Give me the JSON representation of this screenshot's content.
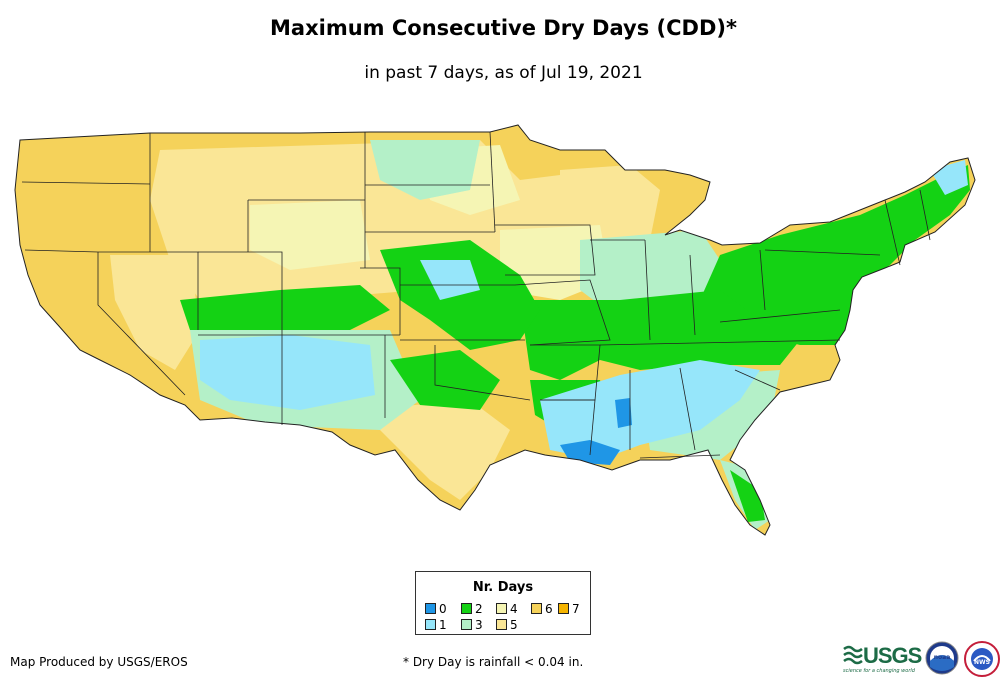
{
  "header": {
    "title": "Maximum Consecutive Dry Days (CDD)*",
    "subtitle": "in past 7 days, as of Jul 19, 2021"
  },
  "legend": {
    "title": "Nr. Days",
    "items": [
      {
        "label": "0",
        "value": 0,
        "color": "#1f96e6"
      },
      {
        "label": "1",
        "value": 1,
        "color": "#96e6fa"
      },
      {
        "label": "2",
        "value": 2,
        "color": "#14d214"
      },
      {
        "label": "3",
        "value": 3,
        "color": "#b4f0c8"
      },
      {
        "label": "4",
        "value": 4,
        "color": "#f5f5b4"
      },
      {
        "label": "5",
        "value": 5,
        "color": "#fae696"
      },
      {
        "label": "6",
        "value": 6,
        "color": "#f5d25a"
      },
      {
        "label": "7",
        "value": 7,
        "color": "#f5b400"
      }
    ]
  },
  "footer": {
    "credit": "Map Produced by USGS/EROS",
    "footnote": "* Dry Day is rainfall < 0.04 in."
  },
  "logos": {
    "usgs": {
      "text": "USGS",
      "tagline": "science for a changing world"
    },
    "noaa": {
      "text": "noaa"
    },
    "nws": {
      "text": "NWS"
    }
  },
  "colors": {
    "background": "#ffffff",
    "state_border": "#222222",
    "usgs_green": "#1c6b46"
  }
}
